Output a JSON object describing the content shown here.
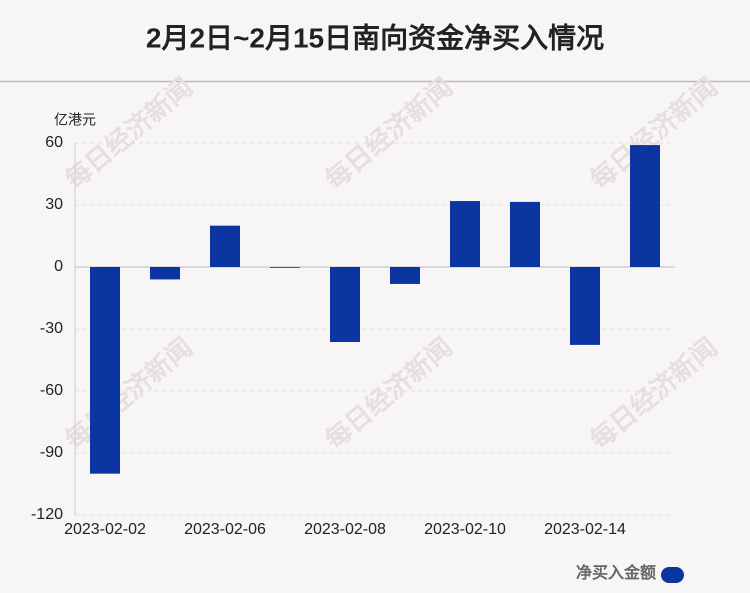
{
  "chart_data": {
    "type": "bar",
    "title": "2月2日~2月15日南向资金净买入情况",
    "y_label": "亿港元",
    "watermark": "每日经济新闻",
    "categories": [
      "2023-02-02",
      null,
      "2023-02-06",
      null,
      "2023-02-08",
      null,
      "2023-02-10",
      null,
      "2023-02-14",
      null
    ],
    "series": [
      {
        "name": "净买入金额",
        "color": "#0b35a0",
        "values": [
          -100,
          -6,
          20,
          0,
          -36.3,
          -8.2,
          31.9,
          31.5,
          -37.7,
          59
        ]
      }
    ],
    "ylim": [
      -120,
      60
    ],
    "yticks": [
      -120,
      -90,
      -60,
      -30,
      0,
      30,
      60
    ],
    "grid": true
  }
}
